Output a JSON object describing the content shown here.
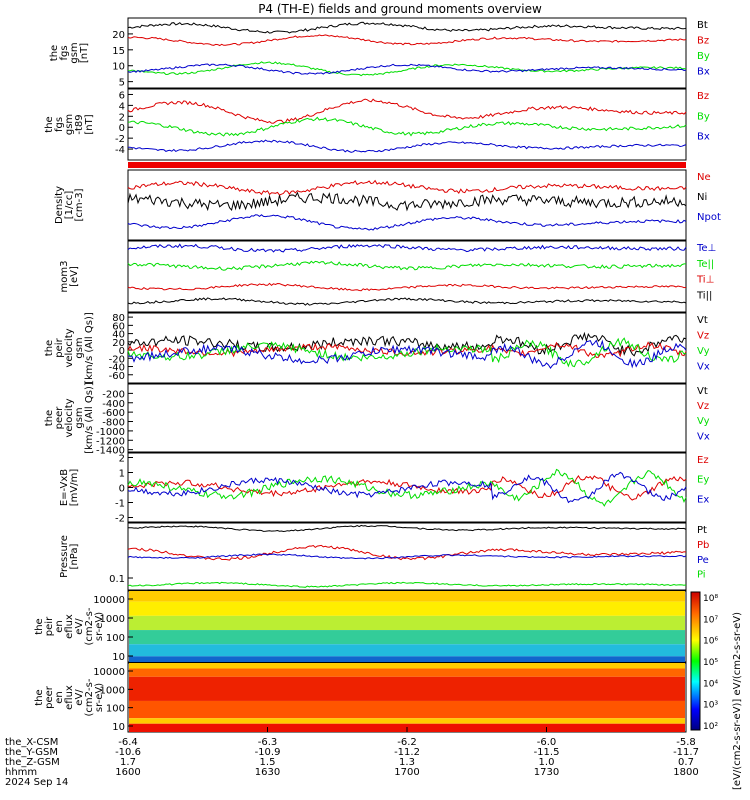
{
  "title": "P4 (TH-E) fields and ground moments overview",
  "colors": {
    "black": "#000000",
    "red": "#dd0000",
    "green": "#00dd00",
    "blue": "#0000cc"
  },
  "chart_data": [
    {
      "type": "line",
      "id": "fgs",
      "ylabel": [
        "the",
        "fgs",
        "gsm",
        "[nT]"
      ],
      "yticks": [
        "20",
        "15",
        "10",
        "5"
      ],
      "ylim": [
        3,
        25
      ],
      "tickvals": [
        20,
        15,
        10,
        5
      ],
      "legend": [
        "Bt",
        "Bz",
        "By",
        "Bx"
      ],
      "series": [
        {
          "name": "Bt",
          "color": "black",
          "base": 22,
          "amp": 1.5,
          "noise": 0.4
        },
        {
          "name": "Bz",
          "color": "red",
          "base": 18,
          "amp": 1.5,
          "noise": 0.3
        },
        {
          "name": "By",
          "color": "green",
          "base": 9,
          "amp": 2,
          "noise": 0.3
        },
        {
          "name": "Bx",
          "color": "blue",
          "base": 9,
          "amp": 1.5,
          "noise": 0.3
        }
      ]
    },
    {
      "type": "line",
      "id": "fgs_dt",
      "ylabel": [
        "the",
        "fgs",
        "gsm",
        "-t89",
        "[nT]"
      ],
      "yticks": [
        "6",
        "4",
        "2",
        "0",
        "-2",
        "-4"
      ],
      "ylim": [
        -6,
        7
      ],
      "tickvals": [
        6,
        4,
        2,
        0,
        -2,
        -4
      ],
      "legend": [
        "Bz",
        "By",
        "Bx"
      ],
      "series": [
        {
          "name": "Bz",
          "color": "red",
          "base": 3,
          "amp": 2,
          "noise": 0.3
        },
        {
          "name": "By",
          "color": "green",
          "base": 0,
          "amp": 1.5,
          "noise": 0.3
        },
        {
          "name": "Bx",
          "color": "blue",
          "base": -3.5,
          "amp": 1,
          "noise": 0.2
        }
      ]
    },
    {
      "type": "line",
      "id": "density",
      "ylabel": [
        "Density",
        "[1/cc]",
        "[cm-3]"
      ],
      "yticks": [],
      "ylim": [
        0,
        10
      ],
      "tickvals": [],
      "legend": [
        "Ne",
        "Ni",
        "Npot"
      ],
      "series": [
        {
          "name": "Ne",
          "color": "red",
          "base": 7.5,
          "amp": 0.8,
          "noise": 0.3
        },
        {
          "name": "Ni",
          "color": "black",
          "base": 5.5,
          "amp": 0.6,
          "noise": 0.8
        },
        {
          "name": "Npot",
          "color": "blue",
          "base": 2.5,
          "amp": 1,
          "noise": 0.2
        }
      ]
    },
    {
      "type": "line",
      "id": "temp",
      "ylabel": [
        "mom3",
        "[eV]"
      ],
      "yticks": [],
      "ylim": [
        0,
        10
      ],
      "tickvals": [],
      "legend": [
        "Te⊥",
        "Te||",
        "Ti⊥",
        "Ti||"
      ],
      "series": [
        {
          "name": "Te⊥",
          "color": "blue",
          "base": 9,
          "amp": 0.4,
          "noise": 0.25
        },
        {
          "name": "Te||",
          "color": "green",
          "base": 6.5,
          "amp": 0.4,
          "noise": 0.25
        },
        {
          "name": "Ti⊥",
          "color": "red",
          "base": 3.5,
          "amp": 0.4,
          "noise": 0.15
        },
        {
          "name": "Ti||",
          "color": "black",
          "base": 1.5,
          "amp": 0.4,
          "noise": 0.15
        }
      ]
    },
    {
      "type": "line",
      "id": "peir_vel",
      "ylabel": [
        "the",
        "peir",
        "velocity",
        "gsm",
        "[km/s (All Qs)]"
      ],
      "yticks": [
        "80",
        "60",
        "40",
        "20",
        "0",
        "-20",
        "-40",
        "-60"
      ],
      "ylim": [
        -80,
        90
      ],
      "tickvals": [
        80,
        60,
        40,
        20,
        0,
        -20,
        -40,
        -60
      ],
      "legend": [
        "Vt",
        "Vz",
        "Vy",
        "Vx"
      ],
      "series": [
        {
          "name": "Vt",
          "color": "black",
          "base": 15,
          "amp": 10,
          "noise": 12
        },
        {
          "name": "Vz",
          "color": "red",
          "base": 0,
          "amp": 8,
          "noise": 8
        },
        {
          "name": "Vy",
          "color": "green",
          "base": -5,
          "amp": 15,
          "noise": 10
        },
        {
          "name": "Vx",
          "color": "blue",
          "base": -10,
          "amp": 15,
          "noise": 10
        }
      ]
    },
    {
      "type": "line",
      "id": "peer_vel",
      "ylabel": [
        "the",
        "peer",
        "velocity",
        "gsm",
        "[km/s (All Qs)]"
      ],
      "yticks": [
        "-200",
        "-400",
        "-600",
        "-800",
        "-1000",
        "-1200",
        "-1400"
      ],
      "ylim": [
        -1450,
        0
      ],
      "tickvals": [
        -200,
        -400,
        -600,
        -800,
        -1000,
        -1200,
        -1400
      ],
      "legend": [
        "Vt",
        "Vz",
        "Vy",
        "Vx"
      ],
      "series": []
    },
    {
      "type": "line",
      "id": "efield",
      "ylabel": [
        "E=-VxB",
        "[mV/m]"
      ],
      "yticks": [
        "2",
        "1",
        "0",
        "-1",
        "-2"
      ],
      "ylim": [
        -2.3,
        2.3
      ],
      "tickvals": [
        2,
        1,
        0,
        -1,
        -2
      ],
      "legend": [
        "Ez",
        "Ey",
        "Ex"
      ],
      "series": [
        {
          "name": "Ez",
          "color": "red",
          "base": 0,
          "amp": 0.4,
          "noise": 0.2
        },
        {
          "name": "Ey",
          "color": "green",
          "base": 0,
          "amp": 0.6,
          "noise": 0.25
        },
        {
          "name": "Ex",
          "color": "blue",
          "base": 0,
          "amp": 0.5,
          "noise": 0.2
        }
      ]
    },
    {
      "type": "line",
      "id": "pressure",
      "ylabel": [
        "Pressure",
        "[nPa]"
      ],
      "yticks": [
        "0.1"
      ],
      "ylim": [
        0,
        10
      ],
      "tickvals": [
        1.3
      ],
      "legend": [
        "Pt",
        "Pb",
        "Pe",
        "Pi"
      ],
      "series": [
        {
          "name": "Pt",
          "color": "black",
          "base": 9.2,
          "amp": 0.4,
          "noise": 0.1
        },
        {
          "name": "Pb",
          "color": "red",
          "base": 5.5,
          "amp": 1,
          "noise": 0.2
        },
        {
          "name": "Pe",
          "color": "blue",
          "base": 5,
          "amp": 0.3,
          "noise": 0.1
        },
        {
          "name": "Pi",
          "color": "green",
          "base": 0.8,
          "amp": 0.3,
          "noise": 0.1
        }
      ]
    },
    {
      "type": "heatmap",
      "id": "peir_spec",
      "ylabel": [
        "the",
        "peir",
        "en",
        "eflux",
        "eV/",
        "(cm2-s-",
        "sr-eV)"
      ],
      "yticks": [
        "10000",
        "1000",
        "100",
        "10"
      ],
      "ylim": [
        5,
        20000
      ]
    },
    {
      "type": "heatmap",
      "id": "peer_spec",
      "ylabel": [
        "the",
        "peer",
        "en",
        "eflux",
        "eV/",
        "(cm2-s-",
        "sr-eV)"
      ],
      "yticks": [
        "10000",
        "1000",
        "100",
        "10"
      ],
      "ylim": [
        5,
        20000
      ]
    }
  ],
  "colorbar": {
    "ticks": [
      "10⁸",
      "10⁷",
      "10⁶",
      "10⁵",
      "10⁴",
      "10³",
      "10²"
    ],
    "label": "[eV/(cm2-s-sr-eV)] eV/(cm2-s-sr-eV)"
  },
  "xaxis": {
    "rows": [
      {
        "label": "the_X-CSM",
        "values": [
          "-6.4",
          "-6.3",
          "-6.2",
          "-6.0",
          "-5.8"
        ]
      },
      {
        "label": "the_Y-GSM",
        "values": [
          "-10.6",
          "-10.9",
          "-11.2",
          "-11.5",
          "-11.7"
        ]
      },
      {
        "label": "the_Z-GSM",
        "values": [
          "1.7",
          "1.5",
          "1.3",
          "1.0",
          "0.7"
        ]
      },
      {
        "label": "hhmm",
        "values": [
          "1600",
          "1630",
          "1700",
          "1730",
          "1800"
        ]
      }
    ],
    "date": "2024 Sep 14"
  }
}
